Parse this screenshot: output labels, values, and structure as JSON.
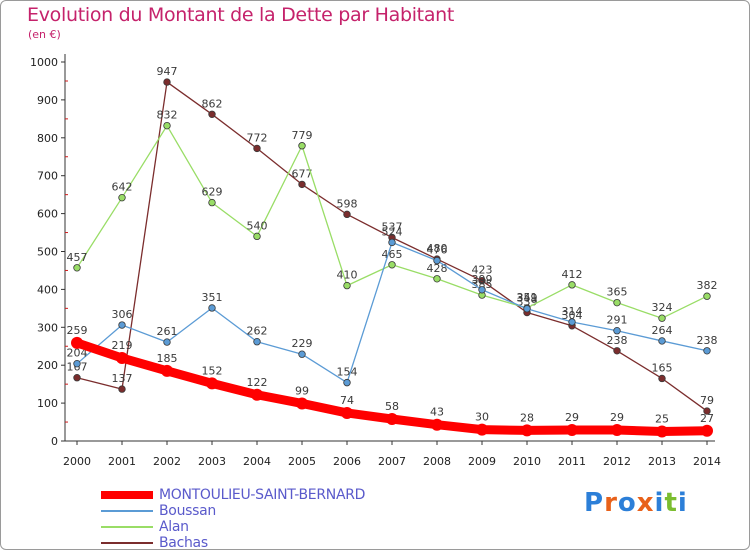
{
  "header": {
    "title": "Evolution du Montant de la Dette par Habitant",
    "subtitle": "(en €)"
  },
  "logo": {
    "text": "Proxiti",
    "letters": [
      "P",
      "r",
      "o",
      "x",
      "i",
      "t",
      "i"
    ],
    "letter_colors": [
      "#2c7fd8",
      "#e8611a",
      "#2c7fd8",
      "#e8611a",
      "#2c7fd8",
      "#7bbd2f",
      "#2c7fd8"
    ]
  },
  "chart_data": {
    "type": "line",
    "title": "Evolution du Montant de la Dette par Habitant",
    "subtitle": "(en €)",
    "xlabel": "",
    "ylabel": "",
    "x": [
      2000,
      2001,
      2002,
      2003,
      2004,
      2005,
      2006,
      2007,
      2008,
      2009,
      2010,
      2011,
      2012,
      2013,
      2014
    ],
    "ylim": [
      0,
      1000
    ],
    "yticks": [
      0,
      100,
      200,
      300,
      400,
      500,
      600,
      700,
      800,
      900,
      1000
    ],
    "grid": false,
    "legend_position": "bottom-left",
    "series": [
      {
        "name": "MONTOULIEU-SAINT-BERNARD",
        "color": "#ff0000",
        "values": [
          259,
          219,
          185,
          152,
          122,
          99,
          74,
          58,
          43,
          30,
          28,
          29,
          29,
          25,
          27
        ]
      },
      {
        "name": "Boussan",
        "color": "#5b9bd5",
        "values": [
          204,
          306,
          261,
          351,
          262,
          229,
          154,
          524,
          476,
          399,
          349,
          314,
          291,
          264,
          238
        ]
      },
      {
        "name": "Alan",
        "color": "#99dd66",
        "values": [
          457,
          642,
          832,
          629,
          540,
          779,
          410,
          465,
          428,
          385,
          351,
          412,
          365,
          324,
          382
        ]
      },
      {
        "name": "Bachas",
        "color": "#7b2d2d",
        "values": [
          167,
          137,
          947,
          862,
          772,
          677,
          598,
          537,
          480,
          423,
          339,
          304,
          238,
          165,
          79
        ]
      }
    ]
  }
}
